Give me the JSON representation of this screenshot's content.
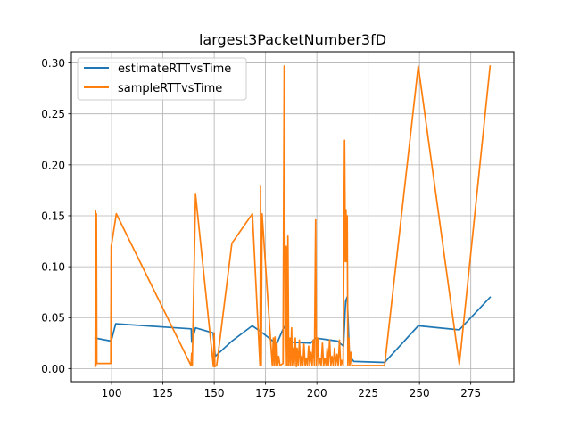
{
  "chart_data": {
    "type": "line",
    "title": "largest3PacketNumber3fD",
    "xlabel": "",
    "ylabel": "",
    "xlim": [
      80.4,
      296.0
    ],
    "ylim": [
      -0.0128,
      0.311
    ],
    "grid": true,
    "legend_position": "top-left",
    "x_ticks": [
      100,
      125,
      150,
      175,
      200,
      225,
      250,
      275
    ],
    "x_tick_labels": [
      "100",
      "125",
      "150",
      "175",
      "200",
      "225",
      "250",
      "275"
    ],
    "y_ticks": [
      0.0,
      0.05,
      0.1,
      0.15,
      0.2,
      0.25,
      0.3
    ],
    "y_tick_labels": [
      "0.00",
      "0.05",
      "0.10",
      "0.15",
      "0.20",
      "0.25",
      "0.30"
    ],
    "series": [
      {
        "name": "estimateRTTvsTime",
        "color": "#1f77b4",
        "points": [
          [
            92.0,
            0.03
          ],
          [
            99.8,
            0.027
          ],
          [
            102.0,
            0.044
          ],
          [
            138.8,
            0.039
          ],
          [
            139.0,
            0.026
          ],
          [
            140.9,
            0.04
          ],
          [
            149.5,
            0.035
          ],
          [
            150.5,
            0.012
          ],
          [
            158.6,
            0.027
          ],
          [
            168.5,
            0.042
          ],
          [
            172.9,
            0.036
          ],
          [
            178.6,
            0.027
          ],
          [
            180.6,
            0.025
          ],
          [
            184.0,
            0.041
          ],
          [
            185.0,
            0.038
          ],
          [
            186.0,
            0.026
          ],
          [
            197.0,
            0.025
          ],
          [
            199.4,
            0.03
          ],
          [
            210.0,
            0.027
          ],
          [
            213.0,
            0.022
          ],
          [
            214.0,
            0.066
          ],
          [
            214.7,
            0.07
          ],
          [
            215.0,
            0.06
          ],
          [
            215.8,
            0.015
          ],
          [
            216.8,
            0.01
          ],
          [
            218.0,
            0.007
          ],
          [
            233.0,
            0.006
          ],
          [
            249.4,
            0.042
          ],
          [
            269.4,
            0.038
          ],
          [
            284.4,
            0.07
          ]
        ]
      },
      {
        "name": "sampleRTTvsTime",
        "color": "#ff7f0e",
        "points": [
          [
            92.0,
            0.002
          ],
          [
            92.2,
            0.155
          ],
          [
            92.4,
            0.003
          ],
          [
            92.6,
            0.152
          ],
          [
            92.8,
            0.005
          ],
          [
            99.6,
            0.005
          ],
          [
            99.8,
            0.12
          ],
          [
            100.0,
            0.122
          ],
          [
            102.3,
            0.152
          ],
          [
            138.7,
            0.003
          ],
          [
            139.0,
            0.015
          ],
          [
            139.3,
            0.003
          ],
          [
            140.9,
            0.171
          ],
          [
            149.6,
            0.002
          ],
          [
            150.0,
            0.035
          ],
          [
            150.3,
            0.002
          ],
          [
            151.2,
            0.003
          ],
          [
            158.6,
            0.123
          ],
          [
            168.6,
            0.152
          ],
          [
            172.3,
            0.003
          ],
          [
            172.6,
            0.179
          ],
          [
            172.9,
            0.003
          ],
          [
            173.3,
            0.152
          ],
          [
            178.3,
            0.003
          ],
          [
            178.8,
            0.03
          ],
          [
            179.2,
            0.003
          ],
          [
            179.6,
            0.031
          ],
          [
            180.1,
            0.003
          ],
          [
            180.5,
            0.025
          ],
          [
            180.8,
            0.003
          ],
          [
            181.4,
            0.012
          ],
          [
            182.0,
            0.003
          ],
          [
            183.5,
            0.005
          ],
          [
            184.1,
            0.297
          ],
          [
            184.6,
            0.003
          ],
          [
            185.1,
            0.12
          ],
          [
            185.5,
            0.003
          ],
          [
            185.9,
            0.13
          ],
          [
            186.3,
            0.003
          ],
          [
            186.8,
            0.03
          ],
          [
            187.2,
            0.003
          ],
          [
            187.7,
            0.04
          ],
          [
            188.1,
            0.003
          ],
          [
            188.6,
            0.02
          ],
          [
            189.0,
            0.003
          ],
          [
            189.5,
            0.03
          ],
          [
            190.0,
            0.002
          ],
          [
            190.4,
            0.02
          ],
          [
            190.9,
            0.003
          ],
          [
            191.5,
            0.028
          ],
          [
            192.0,
            0.003
          ],
          [
            192.6,
            0.012
          ],
          [
            193.2,
            0.003
          ],
          [
            193.7,
            0.024
          ],
          [
            194.3,
            0.003
          ],
          [
            194.8,
            0.01
          ],
          [
            195.4,
            0.003
          ],
          [
            196.0,
            0.022
          ],
          [
            196.5,
            0.003
          ],
          [
            197.1,
            0.016
          ],
          [
            197.7,
            0.003
          ],
          [
            198.2,
            0.028
          ],
          [
            198.8,
            0.003
          ],
          [
            199.4,
            0.146
          ],
          [
            199.8,
            0.003
          ],
          [
            200.4,
            0.03
          ],
          [
            200.9,
            0.003
          ],
          [
            201.5,
            0.01
          ],
          [
            202.1,
            0.003
          ],
          [
            202.7,
            0.025
          ],
          [
            203.3,
            0.003
          ],
          [
            203.9,
            0.01
          ],
          [
            204.5,
            0.003
          ],
          [
            205.0,
            0.02
          ],
          [
            205.6,
            0.003
          ],
          [
            206.2,
            0.028
          ],
          [
            206.8,
            0.003
          ],
          [
            207.4,
            0.012
          ],
          [
            208.0,
            0.003
          ],
          [
            208.6,
            0.02
          ],
          [
            209.2,
            0.003
          ],
          [
            209.8,
            0.014
          ],
          [
            210.4,
            0.003
          ],
          [
            211.0,
            0.028
          ],
          [
            211.6,
            0.003
          ],
          [
            212.2,
            0.008
          ],
          [
            212.8,
            0.003
          ],
          [
            213.5,
            0.224
          ],
          [
            213.9,
            0.105
          ],
          [
            214.2,
            0.156
          ],
          [
            214.5,
            0.105
          ],
          [
            214.8,
            0.15
          ],
          [
            215.1,
            0.003
          ],
          [
            215.6,
            0.03
          ],
          [
            216.0,
            0.003
          ],
          [
            216.6,
            0.016
          ],
          [
            217.1,
            0.003
          ],
          [
            218.0,
            0.003
          ],
          [
            233.0,
            0.003
          ],
          [
            249.4,
            0.297
          ],
          [
            269.4,
            0.004
          ],
          [
            284.4,
            0.297
          ]
        ]
      }
    ]
  }
}
